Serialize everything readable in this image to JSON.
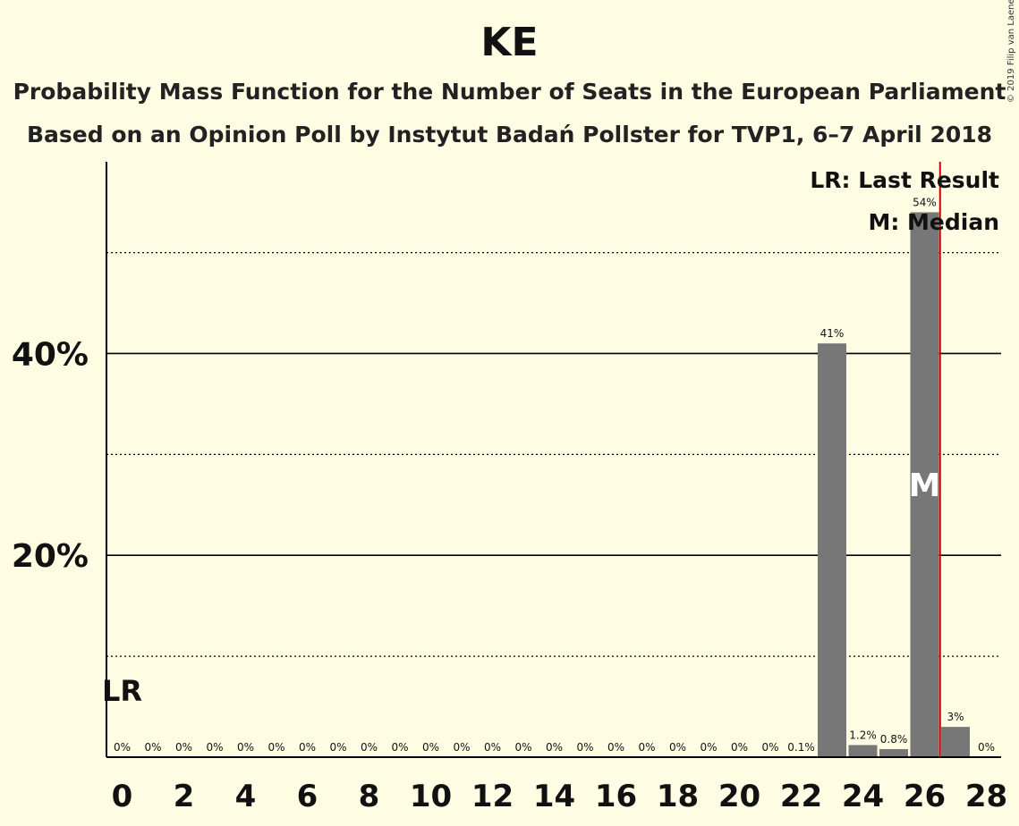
{
  "chart_data": {
    "type": "bar",
    "title": "KE",
    "subtitle_lines": [
      "Probability Mass Function for the Number of Seats in the European Parliament",
      "Based on an Opinion Poll by Instytut Badań Pollster for TVP1, 6–7 April 2018"
    ],
    "copyright": "© 2019 Filip van Laenen",
    "x": [
      0,
      1,
      2,
      3,
      4,
      5,
      6,
      7,
      8,
      9,
      10,
      11,
      12,
      13,
      14,
      15,
      16,
      17,
      18,
      19,
      20,
      21,
      22,
      23,
      24,
      25,
      26,
      27,
      28
    ],
    "values": [
      0,
      0,
      0,
      0,
      0,
      0,
      0,
      0,
      0,
      0,
      0,
      0,
      0,
      0,
      0,
      0,
      0,
      0,
      0,
      0,
      0,
      0,
      0.1,
      41,
      1.2,
      0.8,
      54,
      3,
      0
    ],
    "data_labels": [
      "0%",
      "0%",
      "0%",
      "0%",
      "0%",
      "0%",
      "0%",
      "0%",
      "0%",
      "0%",
      "0%",
      "0%",
      "0%",
      "0%",
      "0%",
      "0%",
      "0%",
      "0%",
      "0%",
      "0%",
      "0%",
      "0%",
      "0.1%",
      "41%",
      "1.2%",
      "0.8%",
      "54%",
      "3%",
      "0%"
    ],
    "x_ticks": [
      0,
      2,
      4,
      6,
      8,
      10,
      12,
      14,
      16,
      18,
      20,
      22,
      24,
      26,
      28
    ],
    "x_tick_labels": [
      "0",
      "2",
      "4",
      "6",
      "8",
      "10",
      "12",
      "14",
      "16",
      "18",
      "20",
      "22",
      "24",
      "26",
      "28"
    ],
    "y_ticks": [
      20,
      40
    ],
    "y_tick_labels": [
      "20%",
      "40%"
    ],
    "y_dotted_gridlines": [
      10,
      30,
      50
    ],
    "ylim": [
      0,
      59
    ],
    "last_result_seat": 0,
    "last_result_marker": "LR",
    "median_seat": 26,
    "median_marker": "M",
    "majority_line_x": 26.5,
    "legend": [
      "LR: Last Result",
      "M: Median"
    ],
    "legend_position": "top-right",
    "colors": {
      "bar": "#777777",
      "background": "#fefde4",
      "majority_line": "#cc0000",
      "axis": "#000000"
    }
  }
}
